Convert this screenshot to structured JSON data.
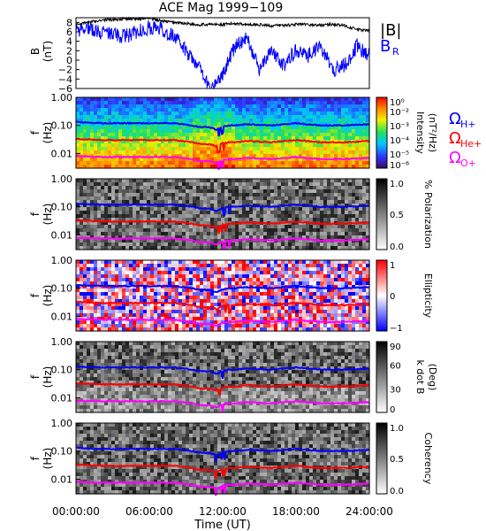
{
  "title": "ACE Mag 1999−109",
  "xlabel": "Time (UT)",
  "x_ticks": [
    "00:00:00",
    "06:00:00",
    "12:00:00",
    "18:00:00",
    "24:00:00"
  ],
  "freq_ticks": [
    "1.00",
    "0.10",
    "0.01"
  ],
  "panel1": {
    "ylabel": "B",
    "yunit": "(nT)",
    "y_ticks": [
      "8",
      "6",
      "4",
      "2",
      "0",
      "−2",
      "−4",
      "−6"
    ],
    "legend_b": "|B|",
    "legend_br_main": "B",
    "legend_br_sub": "R",
    "color_b": "#000000",
    "color_br": "#0000ff"
  },
  "panel_f_label": "f",
  "panel_f_unit": "(Hz)",
  "gyro_legend": [
    {
      "main": "Ω",
      "sub": "H+",
      "color": "#0000ff"
    },
    {
      "main": "Ω",
      "sub": "He+",
      "color": "#ff0000"
    },
    {
      "main": "Ω",
      "sub": "O+",
      "color": "#ff00ff"
    }
  ],
  "colorbars": [
    {
      "label": "Intensity",
      "label2": "(nT²/Hz)",
      "ticks": [
        "10⁰",
        "10⁻²",
        "10⁻³",
        "10⁻⁴",
        "10⁻⁵",
        "10⁻⁶"
      ]
    },
    {
      "label": "% Polarization",
      "label2": "",
      "ticks": [
        "1.0",
        "0.5",
        "0.0"
      ]
    },
    {
      "label": "Ellipticity",
      "label2": "",
      "ticks": [
        "1",
        "0",
        "−1"
      ]
    },
    {
      "label": "k dot B",
      "label2": "(Deg)",
      "ticks": [
        "90",
        "60",
        "30",
        "0"
      ]
    },
    {
      "label": "Coherency",
      "label2": "",
      "ticks": [
        "1.0",
        "0.5",
        "0.0"
      ]
    }
  ],
  "chart_data": {
    "type": "line",
    "title": "ACE Mag 1999−109",
    "xlabel": "Time (UT)",
    "xlim": [
      "00:00:00",
      "24:00:00"
    ],
    "panels": [
      {
        "name": "B",
        "ylim": [
          -6,
          9
        ],
        "series": [
          {
            "name": "|B|",
            "x_hours": [
              0,
              1,
              2,
              4,
              6,
              7,
              8,
              9,
              10,
              11,
              12,
              13,
              14,
              15,
              16,
              17,
              18,
              19,
              20,
              21,
              22,
              23,
              24
            ],
            "values": [
              7.5,
              8,
              8.5,
              8.7,
              8.9,
              8.3,
              8,
              7.8,
              7.5,
              7.6,
              7.5,
              7.8,
              7.6,
              7.5,
              7.3,
              7.4,
              7.6,
              7.5,
              7.4,
              7.6,
              7.3,
              6.5,
              6.2
            ]
          },
          {
            "name": "B_R",
            "x_hours": [
              0,
              1,
              2,
              3,
              4,
              5,
              6,
              7,
              8,
              9,
              10,
              11,
              12,
              13,
              14,
              15,
              16,
              17,
              18,
              19,
              20,
              21,
              22,
              23,
              24
            ],
            "values": [
              6,
              7,
              6,
              5.5,
              5,
              6,
              7,
              6.5,
              5,
              2,
              -1,
              -6,
              -3,
              3,
              5,
              -2,
              2,
              -1,
              2,
              1,
              3,
              -2,
              -1,
              3,
              1
            ]
          }
        ]
      },
      {
        "name": "Intensity",
        "type": "heatmap",
        "ylim": [
          0.003,
          1.0
        ]
      },
      {
        "name": "% Polarization",
        "type": "heatmap",
        "ylim": [
          0.003,
          1.0
        ]
      },
      {
        "name": "Ellipticity",
        "type": "heatmap",
        "ylim": [
          0.003,
          1.0
        ]
      },
      {
        "name": "k dot B",
        "type": "heatmap",
        "ylim": [
          0.003,
          1.0
        ]
      },
      {
        "name": "Coherency",
        "type": "heatmap",
        "ylim": [
          0.003,
          1.0
        ]
      }
    ],
    "gyrofrequencies": {
      "x_hours": [
        0,
        2,
        4,
        6,
        8,
        9.5,
        10,
        11,
        11.5,
        12,
        12.5,
        13,
        14,
        16,
        18,
        20,
        22,
        24
      ],
      "H+": [
        0.13,
        0.12,
        0.12,
        0.12,
        0.12,
        0.1,
        0.09,
        0.085,
        0.07,
        0.09,
        0.1,
        0.1,
        0.11,
        0.1,
        0.12,
        0.1,
        0.1,
        0.11
      ],
      "He+": [
        0.033,
        0.03,
        0.03,
        0.03,
        0.03,
        0.025,
        0.022,
        0.021,
        0.018,
        0.023,
        0.025,
        0.025,
        0.028,
        0.025,
        0.03,
        0.025,
        0.025,
        0.028
      ],
      "O+": [
        0.008,
        0.0075,
        0.0075,
        0.0075,
        0.0075,
        0.0063,
        0.0055,
        0.0053,
        0.0045,
        0.0058,
        0.0063,
        0.0063,
        0.007,
        0.0063,
        0.0075,
        0.0063,
        0.0063,
        0.007
      ]
    }
  }
}
